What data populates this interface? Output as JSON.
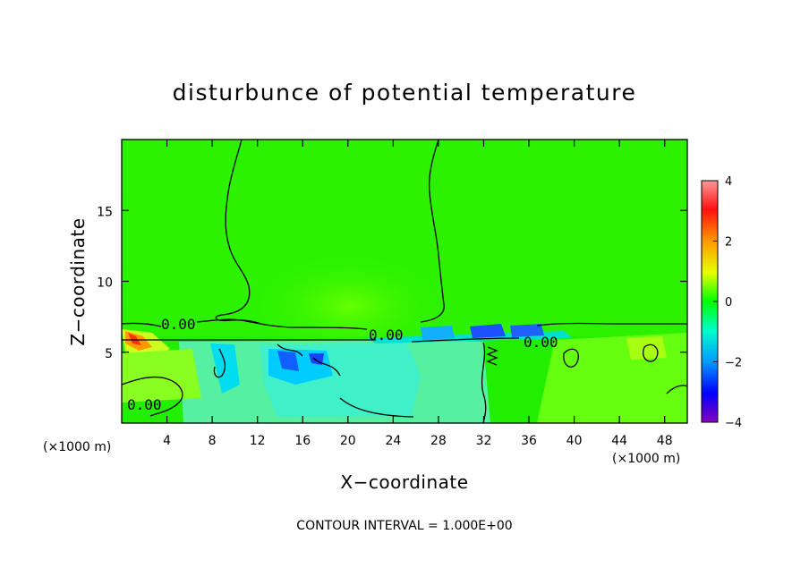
{
  "chart_data": {
    "type": "heatmap",
    "title": "disturbunce of potential temperature",
    "xlabel": "X−coordinate",
    "ylabel": "Z−coordinate",
    "x_unit_left": "(×1000 m)",
    "x_unit_right": "(×1000 m)",
    "xlim": [
      0,
      50
    ],
    "ylim": [
      0,
      20
    ],
    "xticks": [
      4,
      8,
      12,
      16,
      20,
      24,
      28,
      32,
      36,
      40,
      44,
      48
    ],
    "yticks": [
      5,
      10,
      15
    ],
    "colorbar": {
      "range": [
        -4,
        4
      ],
      "ticks": [
        4,
        2,
        0,
        -2,
        -4
      ],
      "colors": [
        "#ff9999",
        "#ff0000",
        "#ff8800",
        "#ffff00",
        "#00ff00",
        "#00ffff",
        "#0088ff",
        "#0000ff",
        "#8800cc"
      ]
    },
    "contour_labels": [
      "0.00",
      "0.00",
      "0.00",
      "0.00"
    ],
    "footer": "CONTOUR INTERVAL = 1.000E+00",
    "background_value": 0
  }
}
